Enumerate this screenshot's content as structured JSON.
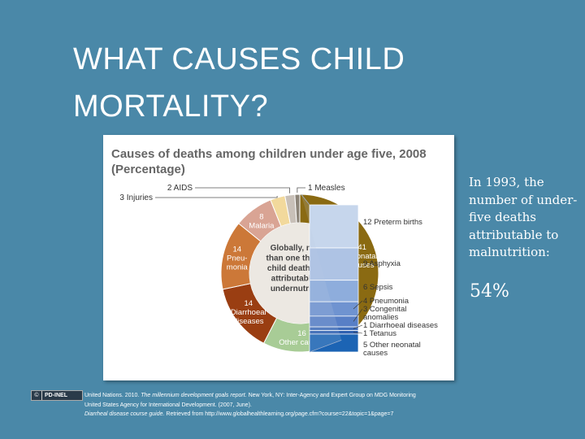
{
  "slide": {
    "title_line1": "WHAT CAUSES CHILD",
    "title_line2": "MORTALITY?"
  },
  "side_note": {
    "text": "In 1993, the number of under-five deaths attributable to malnutrition:",
    "percent": "54%"
  },
  "license_badge": {
    "icon": "creative-commons-icon",
    "label": "PD-INEL"
  },
  "citations": [
    {
      "italic": "",
      "prefix": "United Nations. 2010. ",
      "title": "The millennium development goals report.",
      "rest": " New York, NY: Inter-Agency and Expert Group on MDG Monitoring"
    },
    {
      "italic": "",
      "prefix": "United States Agency for International Development. (2007, June).",
      "title": "",
      "rest": ""
    },
    {
      "italic": "",
      "prefix": "",
      "title": "Diarrheal disease course guide.",
      "rest": " Retrieved from http://www.globalhealthlearning.org/page.cfm?course=22&topic=1&page=7"
    }
  ],
  "chart_data": {
    "type": "pie",
    "title_line1": "Causes of deaths among children under age five, 2008",
    "title_line2": "(Percentage)",
    "center_text": [
      "Globally, more",
      "than one third of",
      "child deaths are",
      "attributable to",
      "undernutrition"
    ],
    "slices": [
      {
        "value": 41,
        "label": "41",
        "name_lines": [
          "Neonatal",
          "causes"
        ],
        "color": "#8a6a12"
      },
      {
        "value": 16,
        "label": "16",
        "name_lines": [
          "Other causes"
        ],
        "color": "#a8cc96"
      },
      {
        "value": 14,
        "label": "14",
        "name_lines": [
          "Diarrhoeal",
          "diseases"
        ],
        "color": "#9a3e12"
      },
      {
        "value": 14,
        "label": "14",
        "name_lines": [
          "Pneu-",
          "monia"
        ],
        "color": "#cc7838"
      },
      {
        "value": 8,
        "label": "8",
        "name_lines": [
          "Malaria"
        ],
        "color": "#d9a494"
      },
      {
        "value": 3,
        "label": "3 Injuries",
        "name_lines": [],
        "color": "#f2d99c"
      },
      {
        "value": 2,
        "label": "2 AIDS",
        "name_lines": [],
        "color": "#c8c0b8"
      },
      {
        "value": 1,
        "label": "1 Measles",
        "name_lines": [],
        "color": "#8c8478"
      }
    ],
    "breakdown": {
      "of": "Neonatal causes",
      "items": [
        {
          "value": 12,
          "label": "12 Preterm births",
          "lines": [
            "12 Preterm births"
          ],
          "color": "#c6d6ec"
        },
        {
          "value": 9,
          "label": "9 Asphyxia",
          "lines": [
            "9 Asphyxia"
          ],
          "color": "#aec3e4"
        },
        {
          "value": 6,
          "label": "6 Sepsis",
          "lines": [
            "6 Sepsis"
          ],
          "color": "#8eaddc"
        },
        {
          "value": 4,
          "label": "4 Pneumonia",
          "lines": [
            "4 Pneumonia"
          ],
          "color": "#6f93d0"
        },
        {
          "value": 3,
          "label": "3 Congenital anomalies",
          "lines": [
            "3 Congenital",
            "anomalies"
          ],
          "color": "#587fc6"
        },
        {
          "value": 1,
          "label": "1 Diarrhoeal diseases",
          "lines": [
            "1 Diarrhoeal diseases"
          ],
          "color": "#3f6cb8"
        },
        {
          "value": 1,
          "label": "1 Tetanus",
          "lines": [
            "1 Tetanus"
          ],
          "color": "#2e60b0"
        },
        {
          "value": 5,
          "label": "5 Other neonatal causes",
          "lines": [
            "5 Other neonatal",
            "causes"
          ],
          "color": "#1c64b4"
        }
      ]
    }
  }
}
